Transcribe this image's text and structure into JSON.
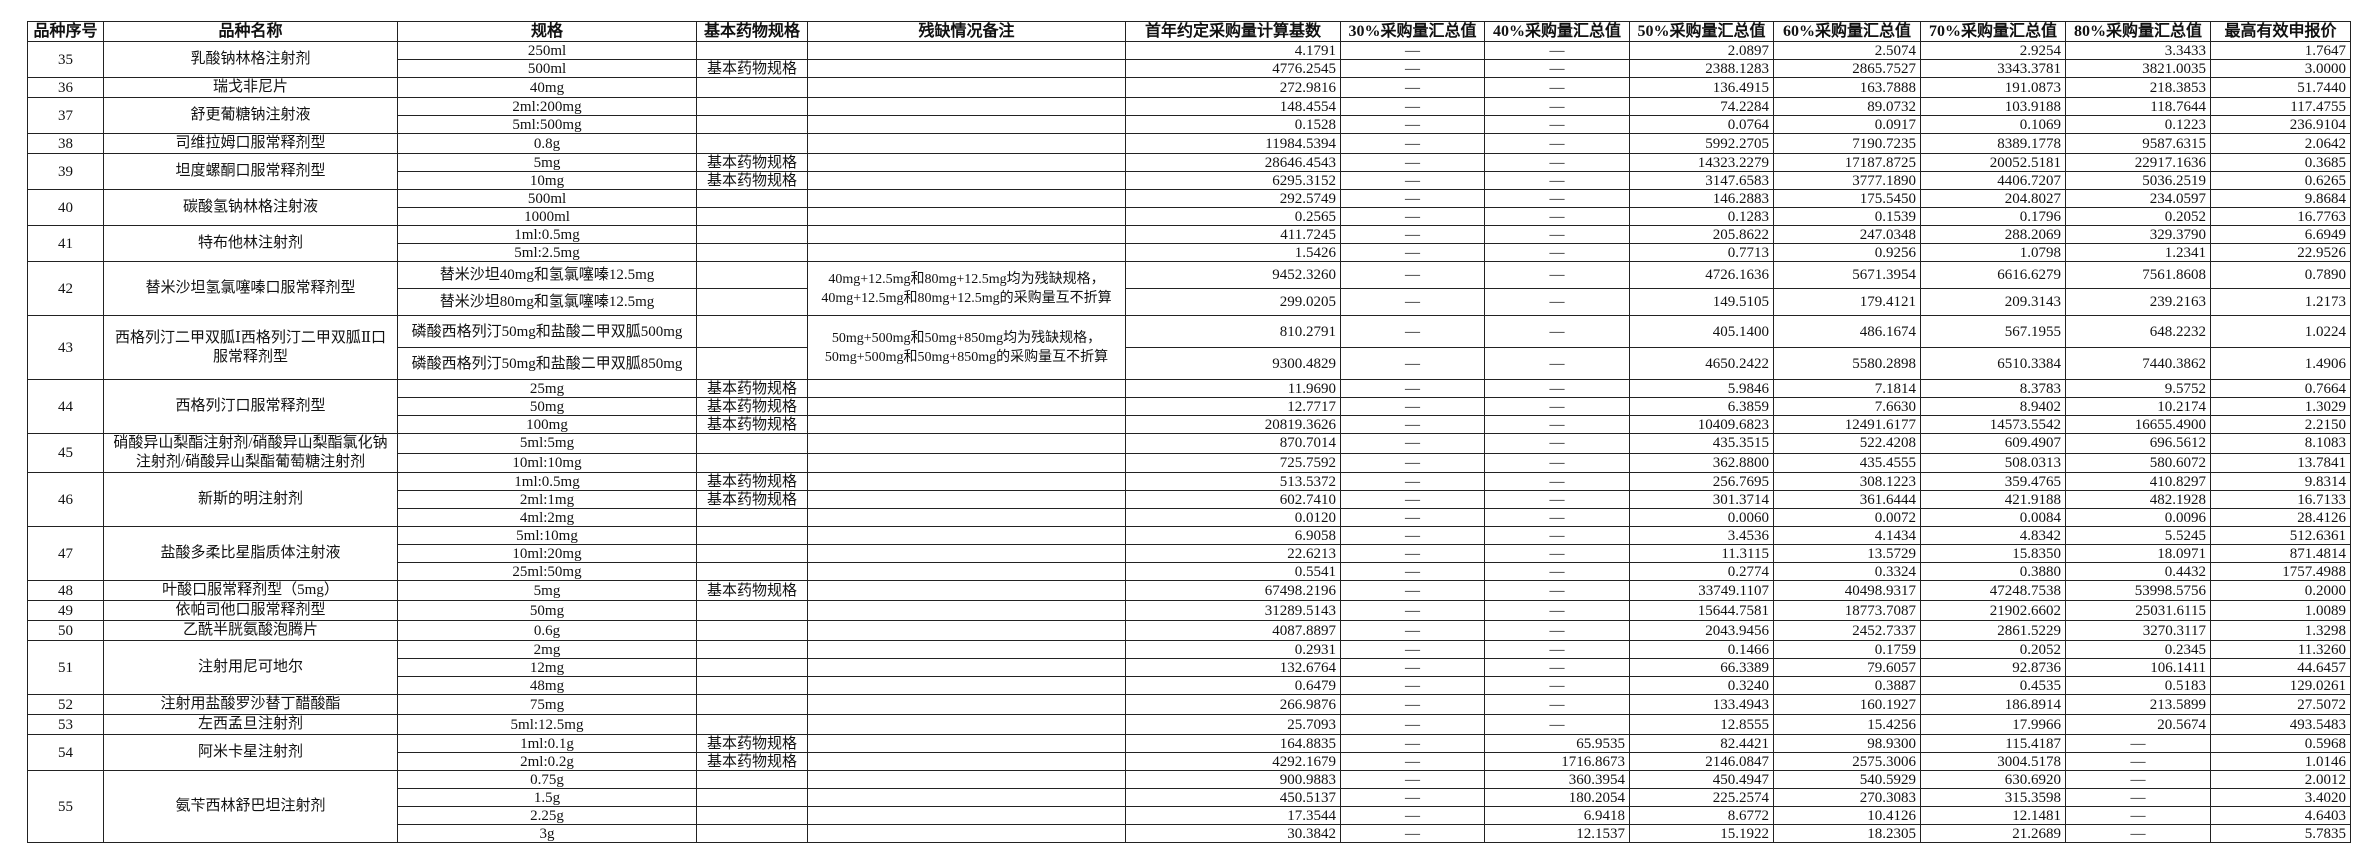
{
  "headers": [
    "品种序号",
    "品种名称",
    "规格",
    "基本药物规格",
    "残缺情况备注",
    "首年约定采购量计算基数",
    "30%采购量汇总值",
    "40%采购量汇总值",
    "50%采购量汇总值",
    "60%采购量汇总值",
    "70%采购量汇总值",
    "80%采购量汇总值",
    "最高有效申报价"
  ],
  "groups": [
    {
      "no": "35",
      "name": "乳酸钠林格注射剂",
      "rows": [
        [
          "250ml",
          "",
          "4.1791",
          "—",
          "—",
          "2.0897",
          "2.5074",
          "2.9254",
          "3.3433",
          "1.7647"
        ],
        [
          "500ml",
          "基本药物规格",
          "4776.2545",
          "—",
          "—",
          "2388.1283",
          "2865.7527",
          "3343.3781",
          "3821.0035",
          "3.0000"
        ]
      ]
    },
    {
      "no": "36",
      "name": "瑞戈非尼片",
      "rows": [
        [
          "40mg",
          "",
          "272.9816",
          "—",
          "—",
          "136.4915",
          "163.7888",
          "191.0873",
          "218.3853",
          "51.7440"
        ]
      ]
    },
    {
      "no": "37",
      "name": "舒更葡糖钠注射液",
      "rows": [
        [
          "2ml:200mg",
          "",
          "148.4554",
          "—",
          "—",
          "74.2284",
          "89.0732",
          "103.9188",
          "118.7644",
          "117.4755"
        ],
        [
          "5ml:500mg",
          "",
          "0.1528",
          "—",
          "—",
          "0.0764",
          "0.0917",
          "0.1069",
          "0.1223",
          "236.9104"
        ]
      ]
    },
    {
      "no": "38",
      "name": "司维拉姆口服常释剂型",
      "rows": [
        [
          "0.8g",
          "",
          "11984.5394",
          "—",
          "—",
          "5992.2705",
          "7190.7235",
          "8389.1778",
          "9587.6315",
          "2.0642"
        ]
      ]
    },
    {
      "no": "39",
      "name": "坦度螺酮口服常释剂型",
      "rows": [
        [
          "5mg",
          "基本药物规格",
          "28646.4543",
          "—",
          "—",
          "14323.2279",
          "17187.8725",
          "20052.5181",
          "22917.1636",
          "0.3685"
        ],
        [
          "10mg",
          "基本药物规格",
          "6295.3152",
          "—",
          "—",
          "3147.6583",
          "3777.1890",
          "4406.7207",
          "5036.2519",
          "0.6265"
        ]
      ]
    },
    {
      "no": "40",
      "name": "碳酸氢钠林格注射液",
      "rows": [
        [
          "500ml",
          "",
          "292.5749",
          "—",
          "—",
          "146.2883",
          "175.5450",
          "204.8027",
          "234.0597",
          "9.8684"
        ],
        [
          "1000ml",
          "",
          "0.2565",
          "—",
          "—",
          "0.1283",
          "0.1539",
          "0.1796",
          "0.2052",
          "16.7763"
        ]
      ]
    },
    {
      "no": "41",
      "name": "特布他林注射剂",
      "rows": [
        [
          "1ml:0.5mg",
          "",
          "411.7245",
          "—",
          "—",
          "205.8622",
          "247.0348",
          "288.2069",
          "329.3790",
          "6.6949"
        ],
        [
          "5ml:2.5mg",
          "",
          "1.5426",
          "—",
          "—",
          "0.7713",
          "0.9256",
          "1.0798",
          "1.2341",
          "22.9526"
        ]
      ]
    },
    {
      "no": "42",
      "name": "替米沙坦氢氯噻嗪口服常释剂型",
      "tall": "tall42",
      "note": "40mg+12.5mg和80mg+12.5mg均为残缺规格，40mg+12.5mg和80mg+12.5mg的采购量互不折算",
      "rows": [
        [
          "替米沙坦40mg和氢氯噻嗪12.5mg",
          "",
          "9452.3260",
          "—",
          "—",
          "4726.1636",
          "5671.3954",
          "6616.6279",
          "7561.8608",
          "0.7890"
        ],
        [
          "替米沙坦80mg和氢氯噻嗪12.5mg",
          "",
          "299.0205",
          "—",
          "—",
          "149.5105",
          "179.4121",
          "209.3143",
          "239.2163",
          "1.2173"
        ]
      ]
    },
    {
      "no": "43",
      "name": "西格列汀二甲双胍Ⅰ西格列汀二甲双胍Ⅱ口服常释剂型",
      "tall": "tall43",
      "note": "50mg+500mg和50mg+850mg均为残缺规格，50mg+500mg和50mg+850mg的采购量互不折算",
      "rows": [
        [
          "磷酸西格列汀50mg和盐酸二甲双胍500mg",
          "",
          "810.2791",
          "—",
          "—",
          "405.1400",
          "486.1674",
          "567.1955",
          "648.2232",
          "1.0224"
        ],
        [
          "磷酸西格列汀50mg和盐酸二甲双胍850mg",
          "",
          "9300.4829",
          "—",
          "—",
          "4650.2422",
          "5580.2898",
          "6510.3384",
          "7440.3862",
          "1.4906"
        ]
      ]
    },
    {
      "no": "44",
      "name": "西格列汀口服常释剂型",
      "rows": [
        [
          "25mg",
          "基本药物规格",
          "11.9690",
          "—",
          "—",
          "5.9846",
          "7.1814",
          "8.3783",
          "9.5752",
          "0.7664"
        ],
        [
          "50mg",
          "基本药物规格",
          "12.7717",
          "—",
          "—",
          "6.3859",
          "7.6630",
          "8.9402",
          "10.2174",
          "1.3029"
        ],
        [
          "100mg",
          "基本药物规格",
          "20819.3626",
          "—",
          "—",
          "10409.6823",
          "12491.6177",
          "14573.5542",
          "16655.4900",
          "2.2150"
        ]
      ]
    },
    {
      "no": "45",
      "name": "硝酸异山梨酯注射剂/硝酸异山梨酯氯化钠注射剂/硝酸异山梨酯葡萄糖注射剂",
      "rows": [
        [
          "5ml:5mg",
          "",
          "870.7014",
          "—",
          "—",
          "435.3515",
          "522.4208",
          "609.4907",
          "696.5612",
          "8.1083"
        ],
        [
          "10ml:10mg",
          "",
          "725.7592",
          "—",
          "—",
          "362.8800",
          "435.4555",
          "508.0313",
          "580.6072",
          "13.7841"
        ]
      ]
    },
    {
      "no": "46",
      "name": "新斯的明注射剂",
      "rows": [
        [
          "1ml:0.5mg",
          "基本药物规格",
          "513.5372",
          "—",
          "—",
          "256.7695",
          "308.1223",
          "359.4765",
          "410.8297",
          "9.8314"
        ],
        [
          "2ml:1mg",
          "基本药物规格",
          "602.7410",
          "—",
          "—",
          "301.3714",
          "361.6444",
          "421.9188",
          "482.1928",
          "16.7133"
        ],
        [
          "4ml:2mg",
          "",
          "0.0120",
          "—",
          "—",
          "0.0060",
          "0.0072",
          "0.0084",
          "0.0096",
          "28.4126"
        ]
      ]
    },
    {
      "no": "47",
      "name": "盐酸多柔比星脂质体注射液",
      "rows": [
        [
          "5ml:10mg",
          "",
          "6.9058",
          "—",
          "—",
          "3.4536",
          "4.1434",
          "4.8342",
          "5.5245",
          "512.6361"
        ],
        [
          "10ml:20mg",
          "",
          "22.6213",
          "—",
          "—",
          "11.3115",
          "13.5729",
          "15.8350",
          "18.0971",
          "871.4814"
        ],
        [
          "25ml:50mg",
          "",
          "0.5541",
          "—",
          "—",
          "0.2774",
          "0.3324",
          "0.3880",
          "0.4432",
          "1757.4988"
        ]
      ]
    },
    {
      "no": "48",
      "name": "叶酸口服常释剂型（5mg）",
      "rows": [
        [
          "5mg",
          "基本药物规格",
          "67498.2196",
          "—",
          "—",
          "33749.1107",
          "40498.9317",
          "47248.7538",
          "53998.5756",
          "0.2000"
        ]
      ]
    },
    {
      "no": "49",
      "name": "依帕司他口服常释剂型",
      "rows": [
        [
          "50mg",
          "",
          "31289.5143",
          "—",
          "—",
          "15644.7581",
          "18773.7087",
          "21902.6602",
          "25031.6115",
          "1.0089"
        ]
      ]
    },
    {
      "no": "50",
      "name": "乙酰半胱氨酸泡腾片",
      "rows": [
        [
          "0.6g",
          "",
          "4087.8897",
          "—",
          "—",
          "2043.9456",
          "2452.7337",
          "2861.5229",
          "3270.3117",
          "1.3298"
        ]
      ]
    },
    {
      "no": "51",
      "name": "注射用尼可地尔",
      "rows": [
        [
          "2mg",
          "",
          "0.2931",
          "—",
          "—",
          "0.1466",
          "0.1759",
          "0.2052",
          "0.2345",
          "11.3260"
        ],
        [
          "12mg",
          "",
          "132.6764",
          "—",
          "—",
          "66.3389",
          "79.6057",
          "92.8736",
          "106.1411",
          "44.6457"
        ],
        [
          "48mg",
          "",
          "0.6479",
          "—",
          "—",
          "0.3240",
          "0.3887",
          "0.4535",
          "0.5183",
          "129.0261"
        ]
      ]
    },
    {
      "no": "52",
      "name": "注射用盐酸罗沙替丁醋酸酯",
      "rows": [
        [
          "75mg",
          "",
          "266.9876",
          "—",
          "—",
          "133.4943",
          "160.1927",
          "186.8914",
          "213.5899",
          "27.5072"
        ]
      ]
    },
    {
      "no": "53",
      "name": "左西孟旦注射剂",
      "rows": [
        [
          "5ml:12.5mg",
          "",
          "25.7093",
          "—",
          "—",
          "12.8555",
          "15.4256",
          "17.9966",
          "20.5674",
          "493.5483"
        ]
      ]
    },
    {
      "no": "54",
      "name": "阿米卡星注射剂",
      "rows": [
        [
          "1ml:0.1g",
          "基本药物规格",
          "164.8835",
          "—",
          "65.9535",
          "82.4421",
          "98.9300",
          "115.4187",
          "—",
          "0.5968"
        ],
        [
          "2ml:0.2g",
          "基本药物规格",
          "4292.1679",
          "—",
          "1716.8673",
          "2146.0847",
          "2575.3006",
          "3004.5178",
          "—",
          "1.0146"
        ]
      ]
    },
    {
      "no": "55",
      "name": "氨苄西林舒巴坦注射剂",
      "rows": [
        [
          "0.75g",
          "",
          "900.9883",
          "—",
          "360.3954",
          "450.4947",
          "540.5929",
          "630.6920",
          "—",
          "2.0012"
        ],
        [
          "1.5g",
          "",
          "450.5137",
          "—",
          "180.2054",
          "225.2574",
          "270.3083",
          "315.3598",
          "—",
          "3.4020"
        ],
        [
          "2.25g",
          "",
          "17.3544",
          "—",
          "6.9418",
          "8.6772",
          "10.4126",
          "12.1481",
          "—",
          "4.6403"
        ],
        [
          "3g",
          "",
          "30.3842",
          "—",
          "12.1537",
          "15.1922",
          "18.2305",
          "21.2689",
          "—",
          "5.7835"
        ]
      ]
    }
  ]
}
